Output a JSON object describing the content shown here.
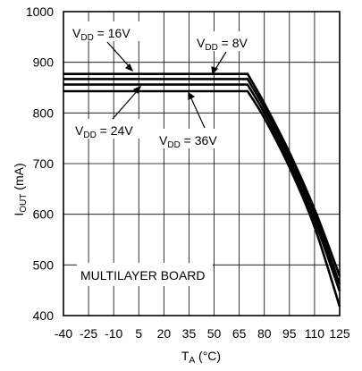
{
  "chart_data": {
    "type": "line",
    "title": "",
    "xlabel": {
      "main": "T",
      "sub": "A",
      "unit": " (°C)"
    },
    "ylabel": {
      "main": "I",
      "sub": "OUT",
      "unit": " (mA)"
    },
    "xlim": [
      -40,
      125
    ],
    "ylim": [
      400,
      1000
    ],
    "x_ticks": [
      -40,
      -25,
      -10,
      5,
      20,
      35,
      50,
      65,
      80,
      95,
      110,
      125
    ],
    "y_ticks": [
      400,
      500,
      600,
      700,
      800,
      900,
      1000
    ],
    "grid": true,
    "line_color": "#000000",
    "annotation": "MULTILAYER BOARD",
    "series": [
      {
        "name": "V_DD = 8V",
        "label": {
          "main": "V",
          "sub": "DD",
          "rest": " = 8V"
        },
        "x": [
          -40,
          70,
          80,
          95,
          110,
          125
        ],
        "y": [
          877,
          877,
          819,
          722,
          610,
          478
        ]
      },
      {
        "name": "V_DD = 16V",
        "label": {
          "main": "V",
          "sub": "DD",
          "rest": " = 16V"
        },
        "x": [
          -40,
          70,
          80,
          95,
          110,
          125
        ],
        "y": [
          867,
          867,
          810,
          713,
          600,
          462
        ]
      },
      {
        "name": "V_DD = 24V",
        "label": {
          "main": "V",
          "sub": "DD",
          "rest": " = 24V"
        },
        "x": [
          -40,
          70,
          80,
          95,
          110,
          125
        ],
        "y": [
          856,
          856,
          800,
          703,
          588,
          448
        ]
      },
      {
        "name": "V_DD = 36V",
        "label": {
          "main": "V",
          "sub": "DD",
          "rest": " = 36V"
        },
        "x": [
          -40,
          70,
          80,
          95,
          110,
          125
        ],
        "y": [
          843,
          843,
          790,
          693,
          575,
          418
        ]
      }
    ]
  }
}
